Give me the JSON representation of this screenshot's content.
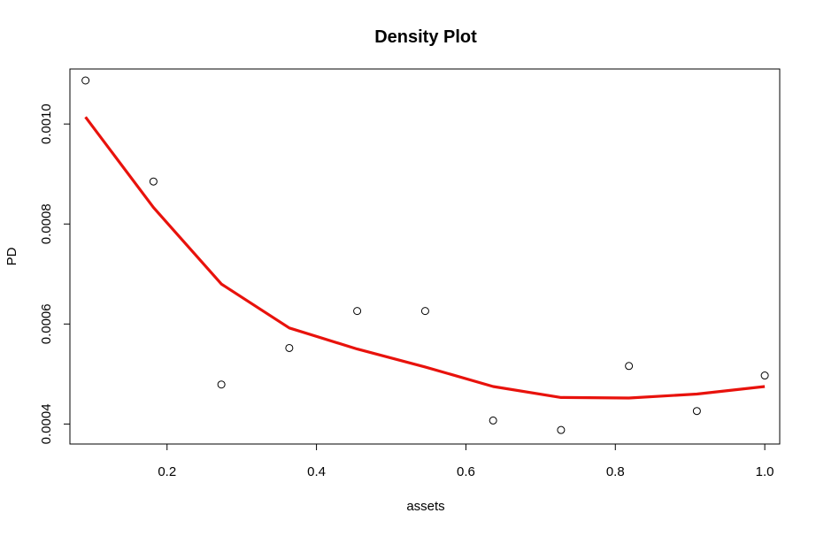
{
  "chart_data": {
    "type": "scatter",
    "title": "Density Plot",
    "xlabel": "assets",
    "ylabel": "PD",
    "xlim": [
      0.07,
      1.02
    ],
    "ylim": [
      0.00036,
      0.00111
    ],
    "x_ticks": [
      0.2,
      0.4,
      0.6,
      0.8,
      1.0
    ],
    "x_tick_labels": [
      "0.2",
      "0.4",
      "0.6",
      "0.8",
      "1.0"
    ],
    "y_ticks": [
      0.0004,
      0.0006,
      0.0008,
      0.001
    ],
    "y_tick_labels": [
      "0.0004",
      "0.0006",
      "0.0008",
      "0.0010"
    ],
    "grid": false,
    "series": [
      {
        "type": "scatter",
        "marker": "open-circle",
        "color": "#000000",
        "x": [
          0.0909,
          0.1818,
          0.2727,
          0.3636,
          0.4545,
          0.5455,
          0.6364,
          0.7273,
          0.8182,
          0.9091,
          1.0
        ],
        "y": [
          0.001087,
          0.000885,
          0.000479,
          0.000552,
          0.000626,
          0.000626,
          0.000407,
          0.000388,
          0.000516,
          0.000426,
          0.000497
        ]
      },
      {
        "type": "line",
        "color": "#e8120c",
        "x": [
          0.0909,
          0.1818,
          0.2727,
          0.3636,
          0.4545,
          0.5455,
          0.6364,
          0.7273,
          0.8182,
          0.9091,
          1.0
        ],
        "y": [
          0.001014,
          0.000833,
          0.00068,
          0.000592,
          0.00055,
          0.000514,
          0.000475,
          0.000453,
          0.000452,
          0.00046,
          0.000475
        ]
      }
    ]
  }
}
